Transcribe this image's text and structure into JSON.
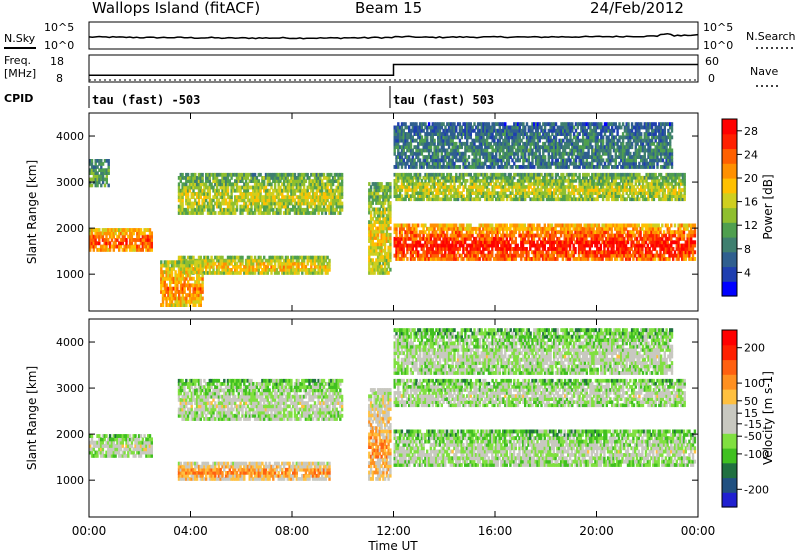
{
  "header": {
    "station": "Wallops Island (fitACF)",
    "beam": "Beam 15",
    "date": "24/Feb/2012"
  },
  "summary": {
    "nsky_label": "N.Sky",
    "nsearch_label": "N.Search",
    "freq_label_1": "Freq.",
    "freq_label_2": "[MHz]",
    "nave_label": "Nave",
    "cpid_label": "CPID",
    "noise_ticks": [
      "10^5",
      "10^0"
    ],
    "freq_ticks": [
      "18",
      "8"
    ],
    "nave_ticks": [
      "60",
      "0"
    ],
    "cpid_1": "tau (fast) -503",
    "cpid_2": "tau (fast) 503"
  },
  "colors": {
    "power": [
      "#0000ff",
      "#1f3fb0",
      "#2f5f8f",
      "#3f7f6f",
      "#4f9f4f",
      "#8fbf2f",
      "#cfcf1f",
      "#ffc000",
      "#ff9000",
      "#ff6000",
      "#ff2000",
      "#ff0000"
    ],
    "velocity": [
      "#2020d0",
      "#205080",
      "#207040",
      "#40c020",
      "#80e040",
      "#c8c8c0",
      "#c8c8c0",
      "#ffc040",
      "#ff9020",
      "#ff6010",
      "#ff2000",
      "#ff0000"
    ]
  },
  "chart_data": [
    {
      "type": "line",
      "panel": "noise",
      "series": [
        {
          "name": "N.Sky",
          "x": [
            "00:00",
            "01:00",
            "02:00",
            "03:00",
            "04:00",
            "05:00",
            "06:00",
            "07:00",
            "08:00",
            "09:00",
            "10:00",
            "11:00",
            "12:00",
            "13:00",
            "14:00",
            "15:00",
            "16:00",
            "17:00",
            "18:00",
            "19:00",
            "20:00",
            "21:00",
            "22:00",
            "22:30",
            "23:00",
            "23:30"
          ],
          "values": [
            0.6,
            0.55,
            0.5,
            0.5,
            0.45,
            0.4,
            0.4,
            0.42,
            0.4,
            0.4,
            0.45,
            0.5,
            0.65,
            0.55,
            0.6,
            0.6,
            0.62,
            0.6,
            0.65,
            0.65,
            0.7,
            0.75,
            0.8,
            1.2,
            0.9,
            1.0
          ]
        }
      ],
      "ylim": [
        0,
        5
      ]
    },
    {
      "type": "line",
      "panel": "frequency",
      "series": [
        {
          "name": "Freq.",
          "x": [
            "00:00",
            "12:00",
            "12:00",
            "24:00"
          ],
          "values": [
            10.5,
            10.5,
            14.5,
            14.5
          ]
        },
        {
          "name": "Nave",
          "x": [
            "00:00",
            "12:00",
            "24:00"
          ],
          "values": [
            8,
            8,
            8
          ]
        }
      ],
      "ylim": [
        8,
        18
      ]
    },
    {
      "type": "heatmap",
      "panel": "power",
      "ylabel": "Slant Range [km]",
      "yticks": [
        "1000",
        "2000",
        "3000",
        "4000"
      ],
      "ylim": [
        200,
        4500
      ],
      "colorbar_label": "Power [dB]",
      "colorbar_ticks": [
        "28",
        "24",
        "20",
        "16",
        "12",
        "8",
        "4"
      ],
      "colorbar_range": [
        0,
        30
      ],
      "bands": [
        {
          "t0": 0.0,
          "t1": 2.5,
          "r0": 1500,
          "r1": 2000,
          "level": 0.85
        },
        {
          "t0": 0.0,
          "t1": 0.8,
          "r0": 2900,
          "r1": 3500,
          "level": 0.4
        },
        {
          "t0": 3.5,
          "t1": 10.0,
          "r0": 2300,
          "r1": 3200,
          "level": 0.55
        },
        {
          "t0": 3.5,
          "t1": 9.5,
          "r0": 1000,
          "r1": 1400,
          "level": 0.65
        },
        {
          "t0": 2.8,
          "t1": 4.5,
          "r0": 300,
          "r1": 1300,
          "level": 0.75
        },
        {
          "t0": 11.0,
          "t1": 11.9,
          "r0": 1000,
          "r1": 3000,
          "level": 0.6
        },
        {
          "t0": 12.0,
          "t1": 23.9,
          "r0": 1300,
          "r1": 2100,
          "level": 0.95
        },
        {
          "t0": 12.0,
          "t1": 23.5,
          "r0": 2600,
          "r1": 3200,
          "level": 0.55
        },
        {
          "t0": 12.0,
          "t1": 23.0,
          "r0": 3300,
          "r1": 4300,
          "level": 0.3
        }
      ]
    },
    {
      "type": "heatmap",
      "panel": "velocity",
      "xlabel": "Time UT",
      "xticks": [
        "00:00",
        "04:00",
        "08:00",
        "12:00",
        "16:00",
        "20:00",
        "00:00"
      ],
      "ylabel": "Slant Range [km]",
      "yticks": [
        "1000",
        "2000",
        "3000",
        "4000"
      ],
      "ylim": [
        200,
        4500
      ],
      "colorbar_label": "Velocity [m s-1]",
      "colorbar_ticks": [
        "200",
        "100",
        "50",
        "15",
        "-15",
        "-50",
        "-100",
        "-200"
      ],
      "colorbar_range": [
        -250,
        250
      ],
      "bands": [
        {
          "t0": 0.0,
          "t1": 2.5,
          "r0": 1500,
          "r1": 2000,
          "level": 0.5
        },
        {
          "t0": 3.5,
          "t1": 10.0,
          "r0": 2300,
          "r1": 3200,
          "level": 0.5
        },
        {
          "t0": 3.5,
          "t1": 9.5,
          "r0": 1000,
          "r1": 1400,
          "level": 0.72
        },
        {
          "t0": 11.0,
          "t1": 11.9,
          "r0": 1000,
          "r1": 3000,
          "level": 0.7
        },
        {
          "t0": 12.0,
          "t1": 23.9,
          "r0": 1300,
          "r1": 2100,
          "level": 0.48
        },
        {
          "t0": 12.0,
          "t1": 23.5,
          "r0": 2600,
          "r1": 3200,
          "level": 0.48
        },
        {
          "t0": 12.0,
          "t1": 23.0,
          "r0": 3300,
          "r1": 4300,
          "level": 0.48
        }
      ]
    }
  ]
}
